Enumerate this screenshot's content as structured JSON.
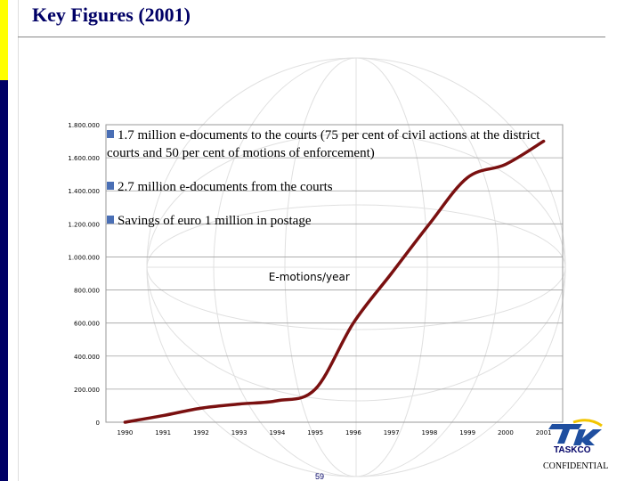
{
  "slide": {
    "title": "Key Figures (2001)",
    "bullets": [
      "1.7 million e-documents to the courts (75 per cent of civil actions at the district courts and 50 per cent of motions of enforcement)",
      "2.7 million e-documents from the courts",
      "Savings of euro 1 million in postage"
    ],
    "page_number": "59",
    "confidential": "CONFIDENTIAL",
    "logo_text": "TASKCO"
  },
  "colors": {
    "title": "#000066",
    "accent_yellow": "#ffff00",
    "accent_navy": "#000066",
    "line": "#7a1010",
    "bullet_marker": "#4a6fb5"
  },
  "chart_data": {
    "type": "line",
    "title": "E-motions/year",
    "x": [
      "1990",
      "1991",
      "1992",
      "1993",
      "1994",
      "1995",
      "1996",
      "1997",
      "1998",
      "1999",
      "2000",
      "2001"
    ],
    "y_tick_labels": [
      "0",
      "200.000",
      "400.000",
      "600.000",
      "800.000",
      "1.000.000",
      "1.200.000",
      "1.400.000",
      "1.600.000",
      "1.800.000"
    ],
    "ylim": [
      0,
      1800000
    ],
    "grid": true,
    "series": [
      {
        "values": [
          0,
          40000,
          85000,
          110000,
          130000,
          200000,
          600000,
          900000,
          1200000,
          1480000,
          1560000,
          1700000
        ]
      }
    ]
  }
}
